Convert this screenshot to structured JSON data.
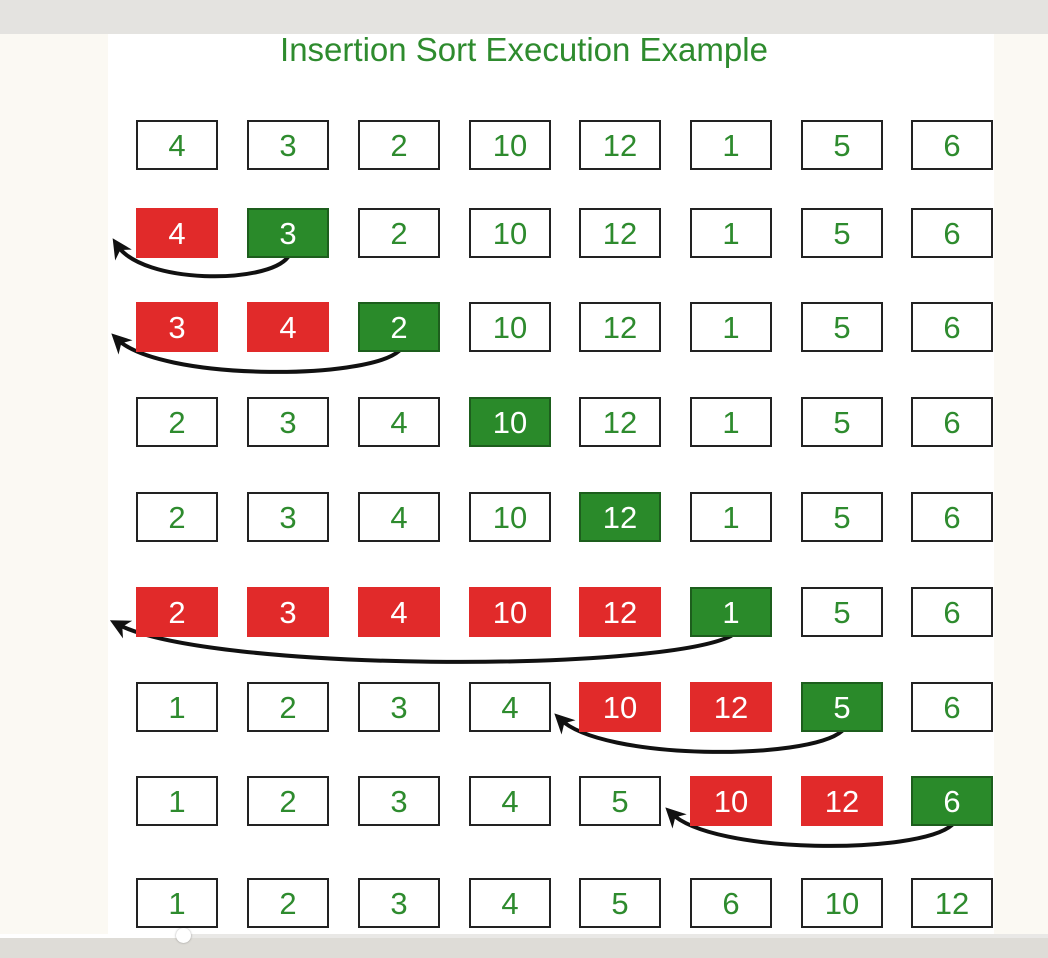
{
  "title": "Insertion Sort Execution Example",
  "colors": {
    "title": "#2e8b2e",
    "normal_text": "#2e8b2e",
    "normal_border": "#222222",
    "compared_fill": "#e12a2a",
    "key_fill": "#2a8a2a",
    "highlight_text": "#ffffff",
    "arrow": "#111111"
  },
  "rows": [
    {
      "values": [
        "4",
        "3",
        "2",
        "10",
        "12",
        "1",
        "5",
        "6"
      ],
      "states": [
        "n",
        "n",
        "n",
        "n",
        "n",
        "n",
        "n",
        "n"
      ],
      "arrow": null
    },
    {
      "values": [
        "4",
        "3",
        "2",
        "10",
        "12",
        "1",
        "5",
        "6"
      ],
      "states": [
        "r",
        "g",
        "n",
        "n",
        "n",
        "n",
        "n",
        "n"
      ],
      "arrow": {
        "from": 1,
        "to": 0
      }
    },
    {
      "values": [
        "3",
        "4",
        "2",
        "10",
        "12",
        "1",
        "5",
        "6"
      ],
      "states": [
        "r",
        "r",
        "g",
        "n",
        "n",
        "n",
        "n",
        "n"
      ],
      "arrow": {
        "from": 2,
        "to": 0
      }
    },
    {
      "values": [
        "2",
        "3",
        "4",
        "10",
        "12",
        "1",
        "5",
        "6"
      ],
      "states": [
        "n",
        "n",
        "n",
        "g",
        "n",
        "n",
        "n",
        "n"
      ],
      "arrow": null
    },
    {
      "values": [
        "2",
        "3",
        "4",
        "10",
        "12",
        "1",
        "5",
        "6"
      ],
      "states": [
        "n",
        "n",
        "n",
        "n",
        "g",
        "n",
        "n",
        "n"
      ],
      "arrow": null
    },
    {
      "values": [
        "2",
        "3",
        "4",
        "10",
        "12",
        "1",
        "5",
        "6"
      ],
      "states": [
        "r",
        "r",
        "r",
        "r",
        "r",
        "g",
        "n",
        "n"
      ],
      "arrow": {
        "from": 5,
        "to": 0
      }
    },
    {
      "values": [
        "1",
        "2",
        "3",
        "4",
        "10",
        "12",
        "5",
        "6"
      ],
      "states": [
        "n",
        "n",
        "n",
        "n",
        "r",
        "r",
        "g",
        "n"
      ],
      "arrow": {
        "from": 6,
        "to": 4
      }
    },
    {
      "values": [
        "1",
        "2",
        "3",
        "4",
        "5",
        "10",
        "12",
        "6"
      ],
      "states": [
        "n",
        "n",
        "n",
        "n",
        "n",
        "r",
        "r",
        "g"
      ],
      "arrow": {
        "from": 7,
        "to": 5
      }
    },
    {
      "values": [
        "1",
        "2",
        "3",
        "4",
        "5",
        "6",
        "10",
        "12"
      ],
      "states": [
        "n",
        "n",
        "n",
        "n",
        "n",
        "n",
        "n",
        "n"
      ],
      "arrow": null
    }
  ],
  "video_progress": 0.175
}
